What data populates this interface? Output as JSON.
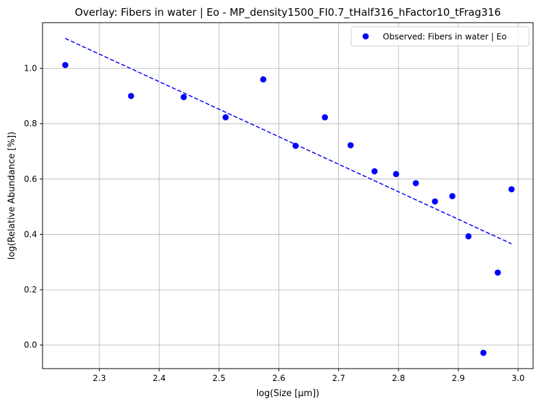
{
  "chart_data": {
    "type": "scatter",
    "title": "Overlay: Fibers in water | Eo - MP_density1500_FI0.7_tHalf316_hFactor10_tFrag316",
    "xlabel": "log(Size [μm])",
    "ylabel": "log(Relative Abundance [%])",
    "xlim": [
      2.205,
      3.025
    ],
    "ylim": [
      -0.085,
      1.165
    ],
    "xticks": [
      2.3,
      2.4,
      2.5,
      2.6,
      2.7,
      2.8,
      2.9,
      3.0
    ],
    "xtick_labels": [
      "2.3",
      "2.4",
      "2.5",
      "2.6",
      "2.7",
      "2.8",
      "2.9",
      "3.0"
    ],
    "yticks": [
      0.0,
      0.2,
      0.4,
      0.6,
      0.8,
      1.0
    ],
    "ytick_labels": [
      "0.0",
      "0.2",
      "0.4",
      "0.6",
      "0.8",
      "1.0"
    ],
    "grid": true,
    "legend_position": "top-right",
    "series": [
      {
        "name": "Observed: Fibers in water | Eo",
        "kind": "scatter",
        "color": "#0000ff",
        "x": [
          2.243,
          2.353,
          2.441,
          2.511,
          2.574,
          2.628,
          2.677,
          2.72,
          2.76,
          2.796,
          2.829,
          2.861,
          2.89,
          2.917,
          2.942,
          2.966,
          2.989
        ],
        "y": [
          1.012,
          0.9,
          0.896,
          0.823,
          0.96,
          0.72,
          0.823,
          0.722,
          0.628,
          0.618,
          0.585,
          0.519,
          0.538,
          0.393,
          -0.028,
          0.262,
          0.563
        ]
      },
      {
        "kind": "line",
        "style": "dashed",
        "color": "#0000ff",
        "x": [
          2.243,
          2.989
        ],
        "y": [
          1.108,
          0.366
        ]
      }
    ]
  }
}
